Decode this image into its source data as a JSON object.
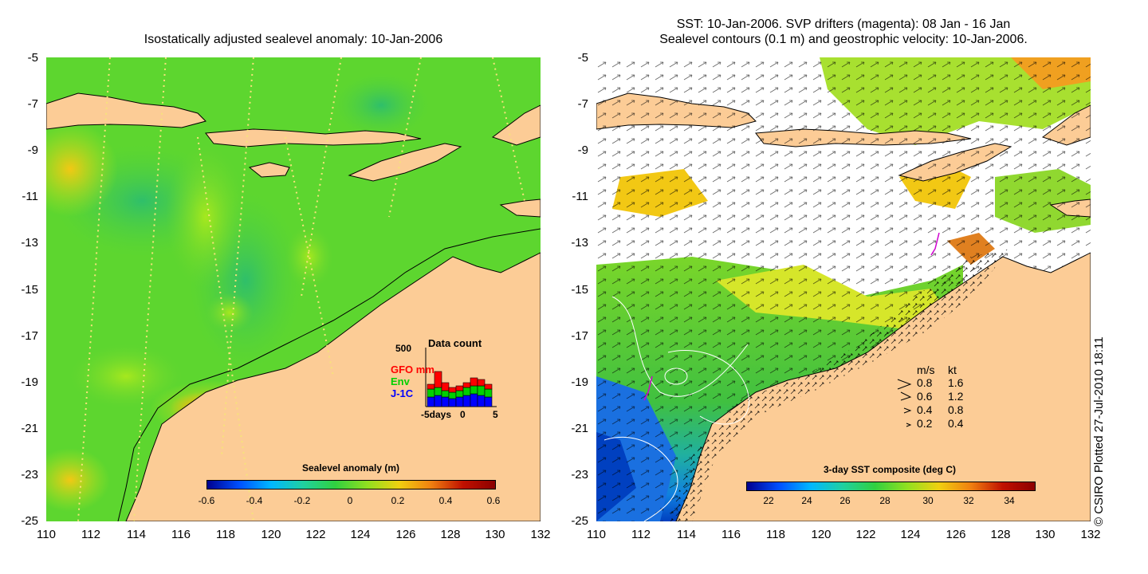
{
  "left_panel": {
    "title": "Isostatically adjusted sealevel anomaly: 10-Jan-2006",
    "x_ticks": [
      "110",
      "112",
      "114",
      "116",
      "118",
      "120",
      "122",
      "124",
      "126",
      "128",
      "130",
      "132"
    ],
    "y_ticks": [
      "-5",
      "-7",
      "-9",
      "-11",
      "-13",
      "-15",
      "-17",
      "-19",
      "-21",
      "-23",
      "-25"
    ],
    "colorbar": {
      "title": "Sealevel anomaly (m)",
      "labels": [
        "-0.6",
        "-0.4",
        "-0.2",
        "0",
        "0.2",
        "0.4",
        "0.6"
      ]
    },
    "data_count": {
      "title": "Data count",
      "max_label": "500",
      "series": [
        {
          "name": "GFO mm",
          "color": "#ff0000"
        },
        {
          "name": "Env",
          "color": "#00d000"
        },
        {
          "name": "J-1C",
          "color": "#0000ff"
        }
      ],
      "x_left": "-5days",
      "x_mid": "0",
      "x_right": "5"
    }
  },
  "right_panel": {
    "title_line1": "SST: 10-Jan-2006. SVP drifters (magenta): 08 Jan - 16 Jan",
    "title_line2": "Sealevel contours (0.1 m) and geostrophic velocity: 10-Jan-2006.",
    "x_ticks": [
      "110",
      "112",
      "114",
      "116",
      "118",
      "120",
      "122",
      "124",
      "126",
      "128",
      "130",
      "132"
    ],
    "y_ticks": [
      "-5",
      "-7",
      "-9",
      "-11",
      "-13",
      "-15",
      "-17",
      "-19",
      "-21",
      "-23",
      "-25"
    ],
    "colorbar": {
      "title": "3-day SST composite (deg C)",
      "labels": [
        "22",
        "24",
        "26",
        "28",
        "30",
        "32",
        "34"
      ]
    },
    "velocity_legend": {
      "header_ms": "m/s",
      "header_kt": "kt",
      "rows": [
        {
          "ms": "0.8",
          "kt": "1.6"
        },
        {
          "ms": "0.6",
          "kt": "1.2"
        },
        {
          "ms": "0.4",
          "kt": "0.8"
        },
        {
          "ms": "0.2",
          "kt": "0.4"
        }
      ]
    }
  },
  "credit": "© CSIRO Plotted 27-Jul-2010 18:11"
}
